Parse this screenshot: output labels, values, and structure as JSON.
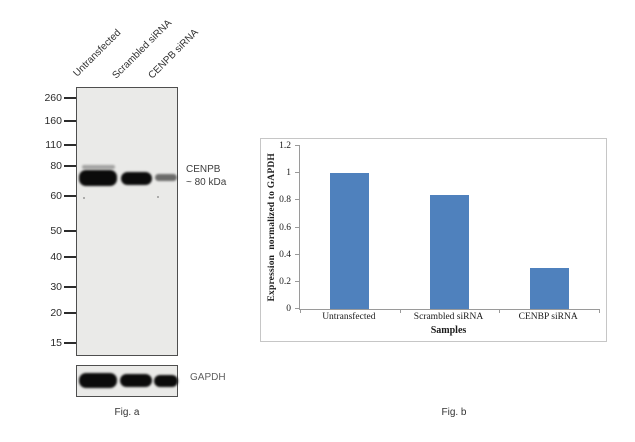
{
  "fig_a": {
    "caption": "Fig. a",
    "lane_labels": [
      "Untransfected",
      "Scrambled siRNA",
      "CENPB siRNA"
    ],
    "mw_markers": [
      "260",
      "160",
      "110",
      "80",
      "60",
      "50",
      "40",
      "30",
      "20",
      "15"
    ],
    "target_annotation": {
      "name": "CENPB",
      "size": "~ 80 kDa"
    },
    "loading_control": "GAPDH",
    "blot_background": "#eaeae8"
  },
  "fig_b": {
    "caption": "Fig. b"
  },
  "chart_data": {
    "type": "bar",
    "title": "",
    "categories": [
      "Untransfected",
      "Scrambled siRNA",
      "CENBP siRNA"
    ],
    "values": [
      1.0,
      0.84,
      0.3
    ],
    "xlabel": "Samples",
    "ylabel": "Expression  normalized to GAPDH",
    "ylim": [
      0,
      1.2
    ],
    "yticks": [
      0,
      0.2,
      0.4,
      0.6,
      0.8,
      1,
      1.2
    ],
    "ytick_labels": [
      "0",
      "0.2",
      "0.4",
      "0.6",
      "0.8",
      "1",
      "1.2"
    ],
    "bar_color": "#4f81bd",
    "grid": false,
    "legend": false
  }
}
